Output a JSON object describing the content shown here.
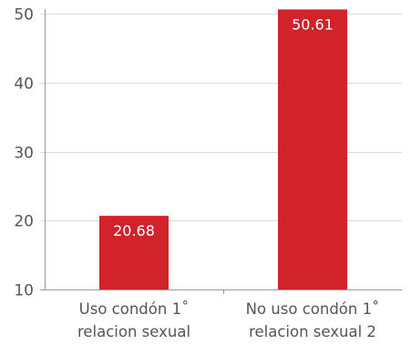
{
  "chart_data": {
    "type": "bar",
    "categories": [
      [
        "Uso condón 1˚",
        "relacion sexual"
      ],
      [
        "No uso condón 1˚",
        "relacion sexual 2"
      ]
    ],
    "values": [
      20.68,
      50.61
    ],
    "data_labels": [
      "20.68",
      "50.61"
    ],
    "ylim": [
      10,
      50
    ],
    "y_ticks": [
      10,
      20,
      30,
      40,
      50
    ],
    "y_tick_labels": [
      "10",
      "20",
      "30",
      "40",
      "50"
    ],
    "grid": true,
    "colors": {
      "bar": "#d2232a"
    }
  }
}
